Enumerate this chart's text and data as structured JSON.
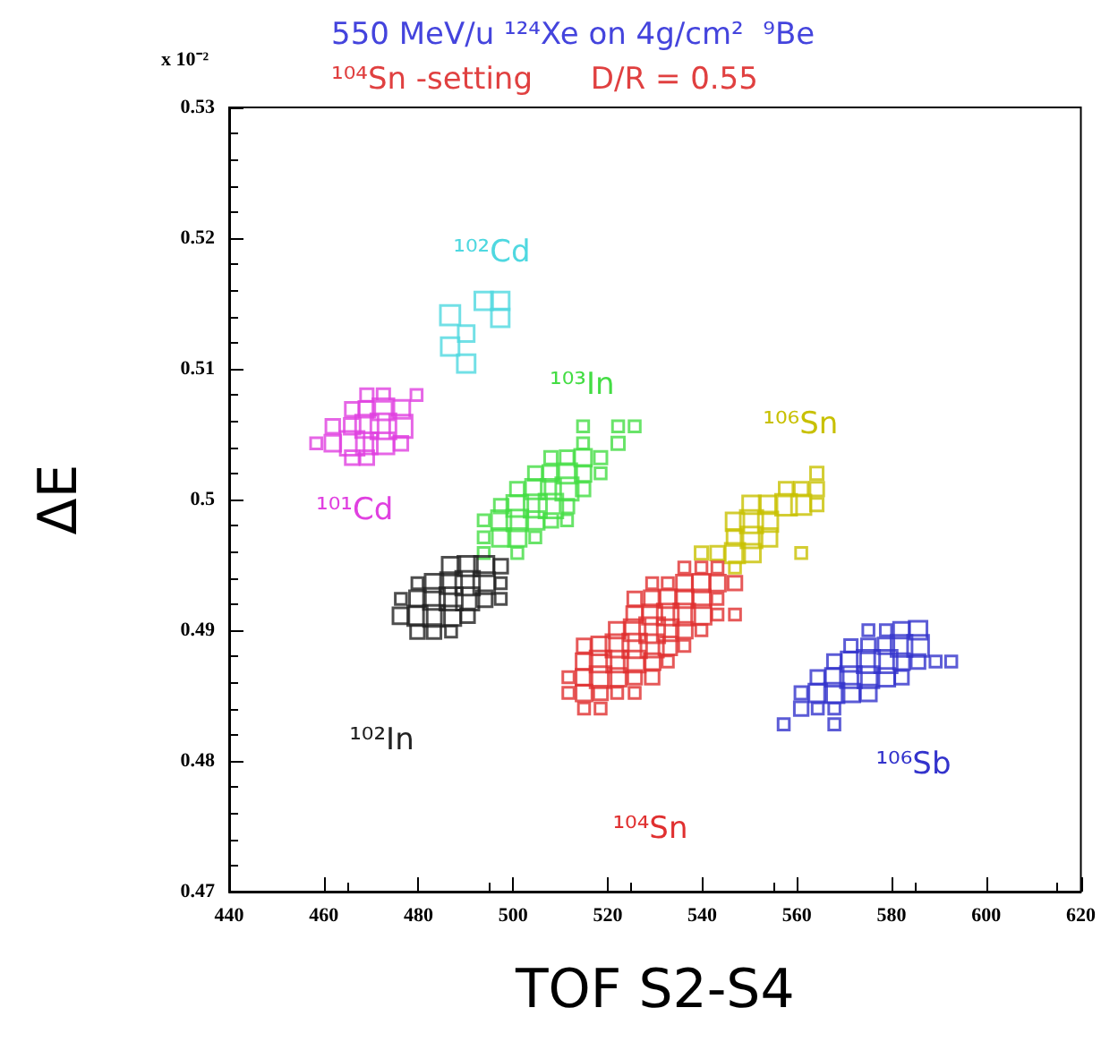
{
  "chart_data": {
    "type": "bubble",
    "title": "550 MeV/u ¹²⁴Xe on 4g/cm²  ⁹Be",
    "subtitle": "¹⁰⁴Sn -setting      D/R = 0.55",
    "xlabel": "TOF S2-S4",
    "ylabel": "ΔE",
    "marker": "square",
    "xlim": [
      440,
      620
    ],
    "xticks": [
      440,
      460,
      480,
      500,
      520,
      540,
      560,
      580,
      600,
      620
    ],
    "ylim": [
      0.47,
      0.53
    ],
    "yticks": [
      0.47,
      0.48,
      0.49,
      0.5,
      0.51,
      0.52,
      0.53
    ],
    "annotations": [
      "x 10⁻²"
    ],
    "series": [
      {
        "name": "¹⁰²Cd",
        "color": "#4fd8e0",
        "x": [
          493.8,
          497.3,
          486.7,
          497.3,
          490.1,
          486.7,
          490.1
        ],
        "values": [
          0.5152,
          0.5152,
          0.5141,
          0.5139,
          0.5127,
          0.5117,
          0.5104
        ],
        "sizes": [
          0.5,
          0.5,
          0.6,
          0.5,
          0.4,
          0.5,
          0.5
        ]
      },
      {
        "name": "¹⁰³In",
        "color": "#44dd44",
        "x": [
          514.8,
          522.2,
          525.7,
          514.8,
          522.2,
          508,
          511.4,
          514.8,
          518.5,
          504.7,
          508,
          511.4,
          514.8,
          518.5,
          500.9,
          504.7,
          508,
          511.4,
          514.8,
          497.5,
          500.9,
          504.7,
          508,
          511.4,
          493.8,
          497.5,
          500.9,
          504.7,
          508,
          511.4,
          493.8,
          497.5,
          500.9,
          504.7,
          493.8,
          500.9
        ],
        "values": [
          0.5056,
          0.5056,
          0.5056,
          0.5043,
          0.5043,
          0.5032,
          0.5032,
          0.5032,
          0.5032,
          0.502,
          0.502,
          0.502,
          0.502,
          0.502,
          0.5008,
          0.5008,
          0.5008,
          0.5008,
          0.5008,
          0.4995,
          0.4995,
          0.4995,
          0.4995,
          0.4995,
          0.4984,
          0.4984,
          0.4984,
          0.4984,
          0.4984,
          0.4984,
          0.4971,
          0.4971,
          0.4971,
          0.4971,
          0.4959,
          0.4959
        ],
        "sizes": [
          0.2,
          0.2,
          0.2,
          0.2,
          0.25,
          0.25,
          0.3,
          0.45,
          0.25,
          0.3,
          0.4,
          0.6,
          0.4,
          0.2,
          0.3,
          0.6,
          0.6,
          0.8,
          0.3,
          0.3,
          0.7,
          0.8,
          0.9,
          0.3,
          0.2,
          0.6,
          0.7,
          0.5,
          0.3,
          0.2,
          0.2,
          0.5,
          0.5,
          0.2,
          0.2,
          0.2
        ]
      },
      {
        "name": "¹⁰¹Cd",
        "color": "#e040e0",
        "x": [
          469.1,
          472.6,
          479.6,
          466,
          469.1,
          472.6,
          476.3,
          461.9,
          466,
          469.1,
          472.6,
          476.3,
          458.4,
          461.9,
          466,
          469.1,
          472.6,
          476.3,
          466,
          469.1
        ],
        "values": [
          0.508,
          0.508,
          0.508,
          0.5069,
          0.5069,
          0.5069,
          0.5069,
          0.5056,
          0.5056,
          0.5056,
          0.5056,
          0.5056,
          0.5043,
          0.5043,
          0.5043,
          0.5043,
          0.5043,
          0.5043,
          0.5032,
          0.5032
        ],
        "sizes": [
          0.25,
          0.25,
          0.2,
          0.3,
          0.4,
          0.7,
          0.5,
          0.3,
          0.4,
          0.8,
          1,
          0.8,
          0.2,
          0.4,
          0.9,
          0.7,
          0.7,
          0.3,
          0.3,
          0.3
        ]
      },
      {
        "name": "¹⁰²In",
        "color": "#222222",
        "x": [
          486.9,
          490.4,
          493.9,
          497.4,
          479.8,
          483.3,
          486.9,
          490.4,
          493.9,
          497.4,
          476.3,
          479.8,
          483.3,
          486.9,
          490.4,
          493.9,
          497.4,
          476.3,
          479.8,
          483.3,
          486.9,
          490.4,
          479.8,
          483.3,
          486.9
        ],
        "values": [
          0.4949,
          0.4949,
          0.4949,
          0.4949,
          0.4936,
          0.4936,
          0.4936,
          0.4936,
          0.4936,
          0.4936,
          0.4924,
          0.4924,
          0.4924,
          0.4924,
          0.4924,
          0.4924,
          0.4924,
          0.4911,
          0.4911,
          0.4911,
          0.4911,
          0.4911,
          0.4899,
          0.4899,
          0.4899
        ],
        "sizes": [
          0.5,
          0.6,
          0.6,
          0.3,
          0.2,
          0.5,
          0.7,
          0.9,
          0.7,
          0.2,
          0.2,
          0.4,
          0.7,
          0.8,
          0.8,
          0.4,
          0.2,
          0.4,
          0.6,
          0.7,
          0.6,
          0.3,
          0.3,
          0.3,
          0.2
        ]
      },
      {
        "name": "¹⁰⁶Sn",
        "color": "#c8c000",
        "x": [
          564.2,
          557.7,
          560.9,
          564.2,
          550.4,
          553.9,
          557.7,
          560.9,
          564.2,
          546.9,
          550.4,
          553.9,
          546.9,
          550.4,
          553.9,
          539.8,
          543.2,
          546.9,
          550.4,
          560.9,
          546.9
        ],
        "values": [
          0.502,
          0.5008,
          0.5008,
          0.5008,
          0.4996,
          0.4996,
          0.4996,
          0.4996,
          0.4996,
          0.4983,
          0.4983,
          0.4983,
          0.4971,
          0.4971,
          0.4971,
          0.4959,
          0.4959,
          0.4959,
          0.4959,
          0.4959,
          0.4948
        ],
        "sizes": [
          0.25,
          0.3,
          0.3,
          0.3,
          0.5,
          0.5,
          0.7,
          0.6,
          0.25,
          0.5,
          0.8,
          0.6,
          0.4,
          0.7,
          0.5,
          0.25,
          0.3,
          0.6,
          0.5,
          0.2,
          0.2
        ]
      },
      {
        "name": "¹⁰⁴Sn",
        "color": "#e03030",
        "x": [
          536.2,
          539.8,
          543.2,
          529.4,
          532.7,
          536.2,
          539.8,
          543.2,
          546.9,
          525.7,
          529.4,
          532.7,
          536.2,
          539.8,
          543.2,
          525.7,
          529.4,
          532.7,
          536.2,
          539.8,
          543.2,
          546.9,
          522,
          525.7,
          529.4,
          532.7,
          536.2,
          539.8,
          515,
          518.5,
          522,
          525.7,
          529.4,
          532.7,
          536.2,
          515,
          518.5,
          522,
          525.7,
          529.4,
          532.7,
          511.7,
          515,
          518.5,
          522,
          525.7,
          529.4,
          511.7,
          515,
          518.5,
          522,
          525.7,
          515,
          518.5
        ],
        "values": [
          0.4948,
          0.4948,
          0.4948,
          0.4936,
          0.4936,
          0.4936,
          0.4936,
          0.4936,
          0.4936,
          0.4924,
          0.4924,
          0.4924,
          0.4924,
          0.4924,
          0.4924,
          0.4912,
          0.4912,
          0.4912,
          0.4912,
          0.4912,
          0.4912,
          0.4912,
          0.49,
          0.49,
          0.49,
          0.49,
          0.49,
          0.49,
          0.4888,
          0.4888,
          0.4888,
          0.4888,
          0.4888,
          0.4888,
          0.4888,
          0.4876,
          0.4876,
          0.4876,
          0.4876,
          0.4876,
          0.4876,
          0.4864,
          0.4864,
          0.4864,
          0.4864,
          0.4864,
          0.4864,
          0.4852,
          0.4852,
          0.4852,
          0.4852,
          0.4852,
          0.484,
          0.484
        ],
        "sizes": [
          0.2,
          0.2,
          0.2,
          0.2,
          0.2,
          0.4,
          0.5,
          0.4,
          0.3,
          0.3,
          0.4,
          0.5,
          0.5,
          0.5,
          0.2,
          0.4,
          0.6,
          0.7,
          0.7,
          0.6,
          0.2,
          0.2,
          0.4,
          0.7,
          1,
          0.7,
          0.4,
          0.2,
          0.3,
          0.5,
          0.8,
          0.9,
          0.8,
          0.5,
          0.2,
          0.4,
          0.7,
          0.7,
          0.7,
          0.4,
          0.2,
          0.2,
          0.4,
          0.7,
          0.5,
          0.3,
          0.3,
          0.2,
          0.4,
          0.3,
          0.2,
          0.2,
          0.2,
          0.2
        ]
      },
      {
        "name": "¹⁰⁶Sb",
        "color": "#3333cc",
        "x": [
          575.1,
          578.8,
          582.1,
          585.6,
          571.4,
          575.1,
          578.8,
          582.1,
          585.6,
          567.9,
          571.4,
          575.1,
          578.8,
          582.1,
          585.6,
          589.3,
          592.6,
          564.4,
          567.9,
          571.4,
          575.1,
          578.8,
          582.1,
          560.9,
          564.4,
          567.9,
          571.4,
          575.1,
          560.9,
          564.4,
          567.9,
          557.2,
          567.9
        ],
        "values": [
          0.49,
          0.49,
          0.49,
          0.49,
          0.4888,
          0.4888,
          0.4888,
          0.4888,
          0.4888,
          0.4876,
          0.4876,
          0.4876,
          0.4876,
          0.4876,
          0.4876,
          0.4876,
          0.4876,
          0.4864,
          0.4864,
          0.4864,
          0.4864,
          0.4864,
          0.4864,
          0.4852,
          0.4852,
          0.4852,
          0.4852,
          0.4852,
          0.484,
          0.484,
          0.484,
          0.4828,
          0.4828
        ],
        "sizes": [
          0.2,
          0.2,
          0.4,
          0.5,
          0.25,
          0.3,
          0.4,
          0.7,
          0.7,
          0.3,
          0.6,
          0.8,
          0.8,
          0.4,
          0.3,
          0.2,
          0.2,
          0.3,
          0.5,
          0.7,
          0.7,
          0.5,
          0.3,
          0.25,
          0.5,
          0.6,
          0.5,
          0.4,
          0.3,
          0.2,
          0.2,
          0.2,
          0.2
        ]
      }
    ]
  }
}
